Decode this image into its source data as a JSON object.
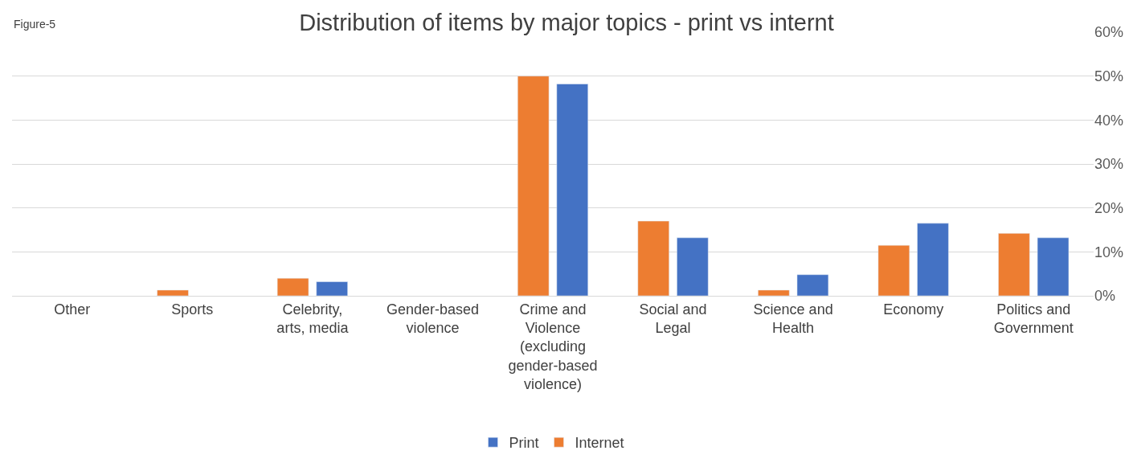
{
  "chart_data": {
    "type": "bar",
    "title": "Distribution of items by major topics - print vs internt",
    "annotations": [
      "Figure-5"
    ],
    "categories": [
      "Other",
      "Sports",
      "Celebrity, arts, media",
      "Gender-based violence",
      "Crime and Violence (excluding gender-based violence)",
      "Social and Legal",
      "Science and Health",
      "Economy",
      "Politics and Government"
    ],
    "series": [
      {
        "name": "Internet",
        "color": "#ed7d31",
        "values": [
          null,
          1.3,
          4,
          null,
          50,
          17,
          1.3,
          11.5,
          14.2
        ]
      },
      {
        "name": "Print",
        "color": "#4472c4",
        "values": [
          null,
          null,
          3.2,
          null,
          48.2,
          13.2,
          4.8,
          16.5,
          13.2
        ]
      }
    ],
    "ylim": [
      0,
      60
    ],
    "yticks": [
      {
        "value": 0,
        "label": "0%"
      },
      {
        "value": 10,
        "label": "10%"
      },
      {
        "value": 20,
        "label": "20%"
      },
      {
        "value": 30,
        "label": "30%"
      },
      {
        "value": 40,
        "label": "40%"
      },
      {
        "value": 50,
        "label": "50%"
      },
      {
        "value": 60,
        "label": "60%"
      }
    ],
    "grid": "y",
    "legend": "bottom"
  }
}
